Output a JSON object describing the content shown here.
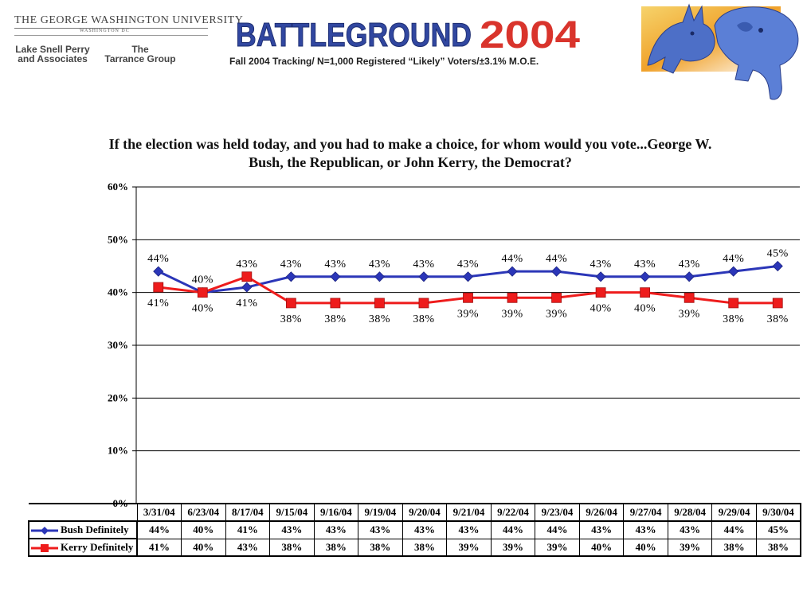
{
  "header": {
    "university": "THE GEORGE WASHINGTON UNIVERSITY",
    "university_location": "WASHINGTON DC",
    "firm_left": [
      "Lake Snell Perry",
      "and Associates"
    ],
    "firm_right": [
      "The",
      "Tarrance Group"
    ],
    "brand_word": "BATTLEGROUND",
    "brand_year": "2004",
    "subtitle": "Fall 2004 Tracking/ N=1,000 Registered “Likely” Voters/±3.1% M.O.E.",
    "mascot_icon": "donkey-elephant-mascot-icon"
  },
  "question": "If the election was held today, and you had to make a choice, for whom would you vote...George W. Bush, the Republican, or John Kerry, the Democrat?",
  "chart_data": {
    "type": "line",
    "title": "If the election was held today, and you had to make a choice, for whom would you vote...George W. Bush, the Republican, or John Kerry, the Democrat?",
    "categories": [
      "3/31/04",
      "6/23/04",
      "8/17/04",
      "9/15/04",
      "9/16/04",
      "9/19/04",
      "9/20/04",
      "9/21/04",
      "9/22/04",
      "9/23/04",
      "9/26/04",
      "9/27/04",
      "9/28/04",
      "9/29/04",
      "9/30/04"
    ],
    "ylim": [
      0,
      60
    ],
    "yticks": [
      "0%",
      "10%",
      "20%",
      "30%",
      "40%",
      "50%",
      "60%"
    ],
    "grid": true,
    "legend": "data-table-left",
    "series": [
      {
        "name": "Bush Definitely",
        "color": "#2b36b8",
        "marker": "diamond",
        "values": [
          44,
          40,
          41,
          43,
          43,
          43,
          43,
          43,
          44,
          44,
          43,
          43,
          43,
          44,
          45
        ],
        "labels": [
          "44%",
          "40%",
          "41%",
          "43%",
          "43%",
          "43%",
          "43%",
          "43%",
          "44%",
          "44%",
          "43%",
          "43%",
          "43%",
          "44%",
          "45%"
        ]
      },
      {
        "name": "Kerry Definitely",
        "color": "#ee1c1c",
        "marker": "square",
        "values": [
          41,
          40,
          43,
          38,
          38,
          38,
          38,
          39,
          39,
          39,
          40,
          40,
          39,
          38,
          38
        ],
        "labels": [
          "41%",
          "40%",
          "43%",
          "38%",
          "38%",
          "38%",
          "38%",
          "39%",
          "39%",
          "39%",
          "40%",
          "40%",
          "39%",
          "38%",
          "38%"
        ]
      }
    ]
  }
}
